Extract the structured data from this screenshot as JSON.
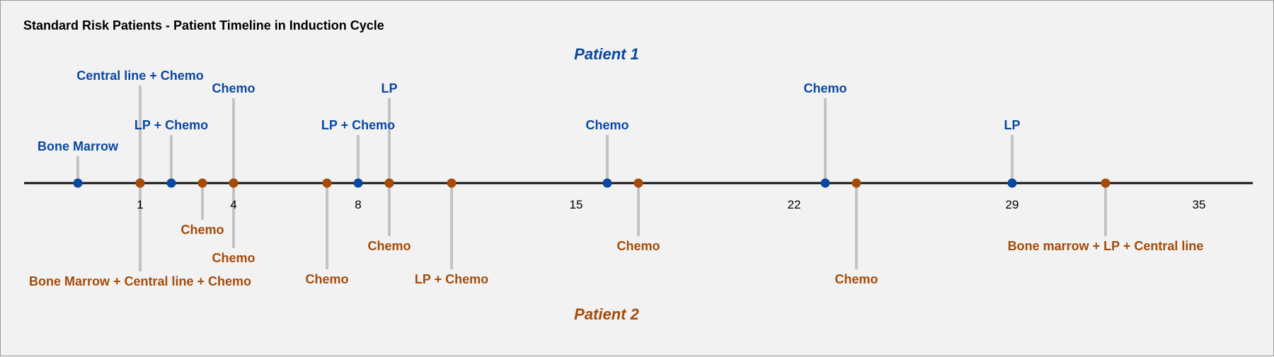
{
  "title": "Standard Risk Patients - Patient Timeline in Induction Cycle",
  "colors": {
    "patient1": "#0b47a1",
    "patient2": "#a64a08",
    "stem": "#c3c3c3",
    "axis": "#111111",
    "background": "#f2f2f2"
  },
  "chart_data": {
    "type": "timeline",
    "title": "Standard Risk Patients - Patient Timeline in Induction Cycle",
    "x_ticks": [
      1,
      4,
      8,
      15,
      22,
      29,
      35
    ],
    "x_range": [
      -2.75,
      36.75
    ],
    "series": [
      {
        "name": "Patient 1",
        "color": "#0b47a1",
        "side": "above",
        "events": [
          {
            "day": -1,
            "label": "Bone Marrow"
          },
          {
            "day": 1,
            "label": "Central line + Chemo"
          },
          {
            "day": 2,
            "label": "LP + Chemo"
          },
          {
            "day": 4,
            "label": "Chemo"
          },
          {
            "day": 8,
            "label": "LP + Chemo"
          },
          {
            "day": 9,
            "label": "LP"
          },
          {
            "day": 16,
            "label": "Chemo"
          },
          {
            "day": 23,
            "label": "Chemo"
          },
          {
            "day": 29,
            "label": "LP"
          }
        ]
      },
      {
        "name": "Patient 2",
        "color": "#a64a08",
        "side": "below",
        "events": [
          {
            "day": 1,
            "label": "Bone Marrow + Central line + Chemo"
          },
          {
            "day": 3,
            "label": "Chemo"
          },
          {
            "day": 4,
            "label": "Chemo"
          },
          {
            "day": 7,
            "label": "Chemo"
          },
          {
            "day": 9,
            "label": "Chemo"
          },
          {
            "day": 11,
            "label": "LP + Chemo"
          },
          {
            "day": 17,
            "label": "Chemo"
          },
          {
            "day": 24,
            "label": "Chemo"
          },
          {
            "day": 32,
            "label": "Bone marrow + LP + Central line"
          }
        ]
      }
    ]
  }
}
